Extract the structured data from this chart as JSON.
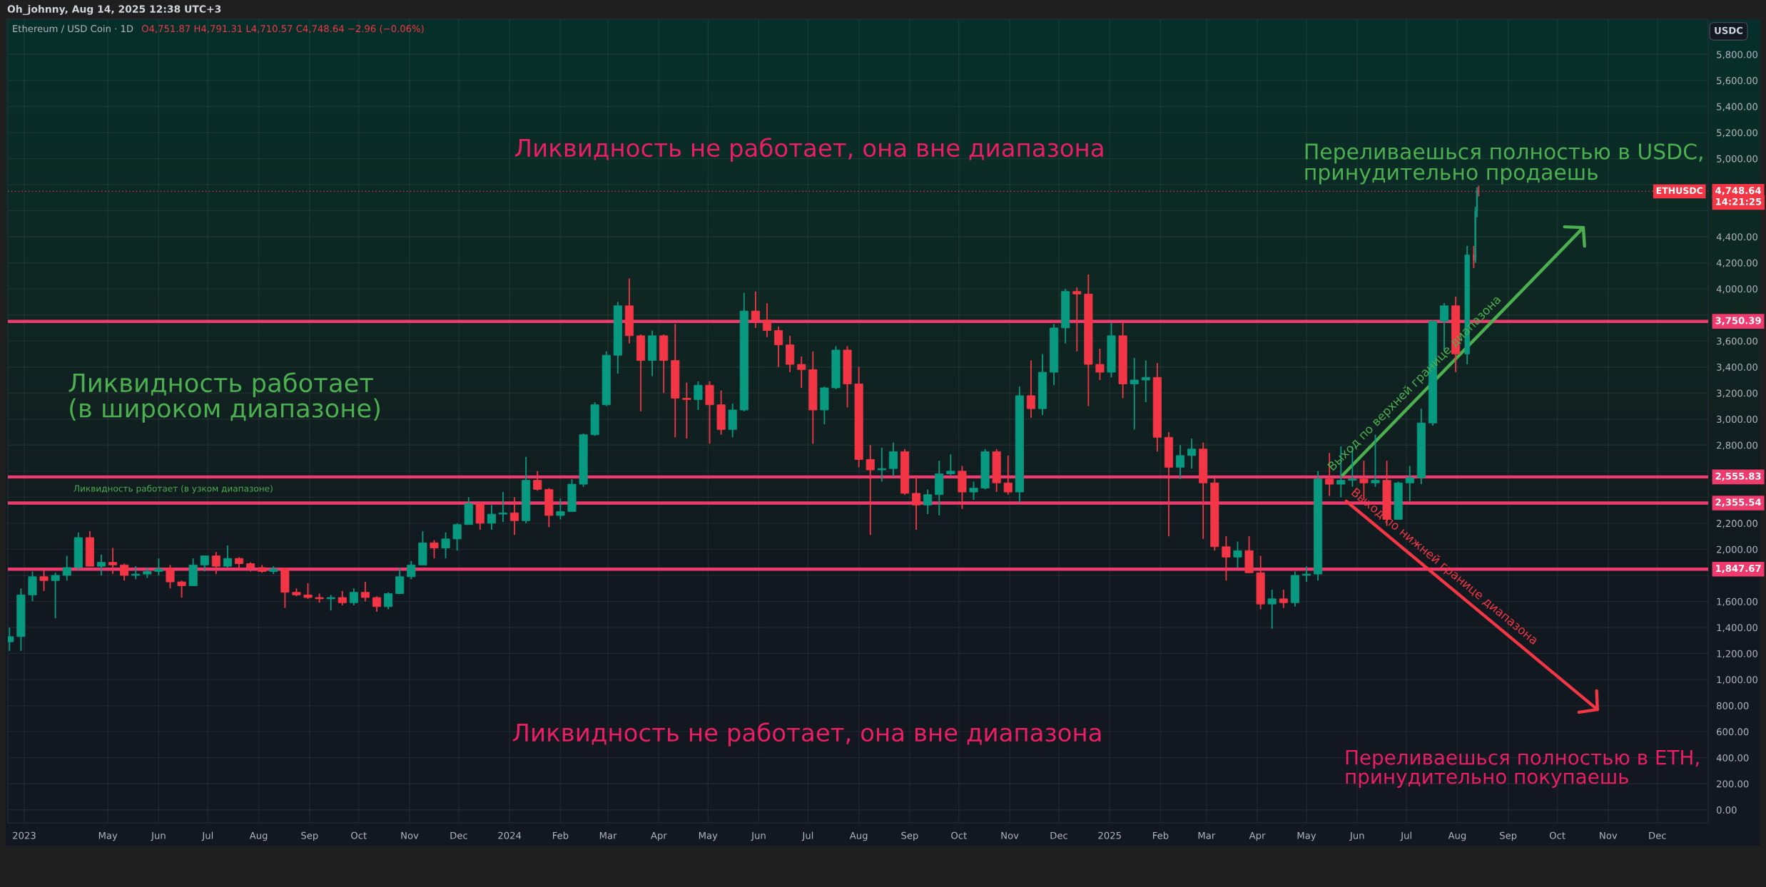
{
  "chart_data": {
    "type": "candlestick",
    "title": "Ethereum / USD Coin · 1D",
    "x": [
      "2023-03-02",
      "2023-03-09",
      "2023-03-16",
      "2023-03-23",
      "2023-03-30",
      "2023-04-06",
      "2023-04-13",
      "2023-04-20",
      "2023-04-27",
      "2023-05-04",
      "2023-05-11",
      "2023-05-18",
      "2023-05-25",
      "2023-06-01",
      "2023-06-08",
      "2023-06-15",
      "2023-06-22",
      "2023-06-29",
      "2023-07-06",
      "2023-07-13",
      "2023-07-20",
      "2023-07-27",
      "2023-08-03",
      "2023-08-10",
      "2023-08-17",
      "2023-08-24",
      "2023-08-31",
      "2023-09-07",
      "2023-09-14",
      "2023-09-21",
      "2023-09-28",
      "2023-10-05",
      "2023-10-12",
      "2023-10-19",
      "2023-10-26",
      "2023-11-02",
      "2023-11-09",
      "2023-11-16",
      "2023-11-23",
      "2023-11-30",
      "2023-12-07",
      "2023-12-14",
      "2023-12-21",
      "2023-12-28",
      "2024-01-04",
      "2024-01-11",
      "2024-01-18",
      "2024-01-25",
      "2024-02-01",
      "2024-02-08",
      "2024-02-15",
      "2024-02-22",
      "2024-02-29",
      "2024-03-07",
      "2024-03-14",
      "2024-03-21",
      "2024-03-28",
      "2024-04-04",
      "2024-04-11",
      "2024-04-18",
      "2024-04-25",
      "2024-05-02",
      "2024-05-09",
      "2024-05-16",
      "2024-05-23",
      "2024-05-30",
      "2024-06-06",
      "2024-06-13",
      "2024-06-20",
      "2024-06-27",
      "2024-07-04",
      "2024-07-11",
      "2024-07-18",
      "2024-07-25",
      "2024-08-01",
      "2024-08-08",
      "2024-08-15",
      "2024-08-22",
      "2024-08-29",
      "2024-09-05",
      "2024-09-12",
      "2024-09-19",
      "2024-09-26",
      "2024-10-03",
      "2024-10-10",
      "2024-10-17",
      "2024-10-24",
      "2024-10-31",
      "2024-11-07",
      "2024-11-14",
      "2024-11-21",
      "2024-11-28",
      "2024-12-05",
      "2024-12-12",
      "2024-12-19",
      "2024-12-26",
      "2025-01-02",
      "2025-01-09",
      "2025-01-16",
      "2025-01-23",
      "2025-01-30",
      "2025-02-06",
      "2025-02-13",
      "2025-02-20",
      "2025-02-27",
      "2025-03-06",
      "2025-03-13",
      "2025-03-20",
      "2025-03-27",
      "2025-04-03",
      "2025-04-10",
      "2025-04-17",
      "2025-04-24",
      "2025-05-01",
      "2025-05-08",
      "2025-05-15",
      "2025-05-22",
      "2025-05-29",
      "2025-06-05",
      "2025-06-12",
      "2025-06-19",
      "2025-06-26",
      "2025-07-03",
      "2025-07-10",
      "2025-07-17",
      "2025-07-24",
      "2025-07-31",
      "2025-08-07",
      "2025-08-11",
      "2025-08-12",
      "2025-08-13",
      "2025-08-14"
    ],
    "ohlc": [
      [
        1290,
        1400,
        1220,
        1330
      ],
      [
        1330,
        1700,
        1220,
        1650
      ],
      [
        1650,
        1830,
        1600,
        1790
      ],
      [
        1790,
        1840,
        1680,
        1760
      ],
      [
        1760,
        1820,
        1470,
        1800
      ],
      [
        1800,
        1950,
        1760,
        1860
      ],
      [
        1860,
        2130,
        1840,
        2090
      ],
      [
        2090,
        2140,
        1870,
        1870
      ],
      [
        1870,
        1960,
        1800,
        1900
      ],
      [
        1900,
        2010,
        1810,
        1880
      ],
      [
        1880,
        1890,
        1760,
        1800
      ],
      [
        1800,
        1870,
        1770,
        1810
      ],
      [
        1810,
        1860,
        1780,
        1830
      ],
      [
        1830,
        1930,
        1800,
        1850
      ],
      [
        1850,
        1880,
        1700,
        1750
      ],
      [
        1750,
        1760,
        1630,
        1720
      ],
      [
        1720,
        1930,
        1720,
        1880
      ],
      [
        1880,
        1950,
        1830,
        1950
      ],
      [
        1950,
        1980,
        1810,
        1870
      ],
      [
        1870,
        2030,
        1860,
        1930
      ],
      [
        1930,
        1940,
        1850,
        1890
      ],
      [
        1890,
        1900,
        1830,
        1860
      ],
      [
        1860,
        1880,
        1820,
        1830
      ],
      [
        1830,
        1870,
        1810,
        1850
      ],
      [
        1850,
        1860,
        1550,
        1670
      ],
      [
        1670,
        1700,
        1640,
        1650
      ],
      [
        1650,
        1740,
        1620,
        1630
      ],
      [
        1630,
        1660,
        1590,
        1620
      ],
      [
        1620,
        1650,
        1530,
        1630
      ],
      [
        1630,
        1680,
        1570,
        1590
      ],
      [
        1590,
        1700,
        1570,
        1670
      ],
      [
        1670,
        1750,
        1600,
        1630
      ],
      [
        1630,
        1640,
        1520,
        1560
      ],
      [
        1560,
        1670,
        1540,
        1660
      ],
      [
        1660,
        1860,
        1660,
        1790
      ],
      [
        1790,
        1910,
        1770,
        1880
      ],
      [
        1880,
        2140,
        1880,
        2050
      ],
      [
        2050,
        2070,
        1930,
        2010
      ],
      [
        2010,
        2130,
        1930,
        2080
      ],
      [
        2080,
        2200,
        1990,
        2190
      ],
      [
        2190,
        2400,
        2190,
        2350
      ],
      [
        2350,
        2360,
        2150,
        2200
      ],
      [
        2200,
        2340,
        2150,
        2270
      ],
      [
        2270,
        2440,
        2210,
        2280
      ],
      [
        2280,
        2400,
        2110,
        2220
      ],
      [
        2220,
        2710,
        2200,
        2530
      ],
      [
        2530,
        2600,
        2450,
        2460
      ],
      [
        2460,
        2470,
        2170,
        2260
      ],
      [
        2260,
        2390,
        2230,
        2290
      ],
      [
        2290,
        2540,
        2290,
        2500
      ],
      [
        2500,
        2890,
        2480,
        2880
      ],
      [
        2880,
        3130,
        2870,
        3110
      ],
      [
        3110,
        3520,
        3100,
        3490
      ],
      [
        3490,
        3900,
        3350,
        3870
      ],
      [
        3870,
        4080,
        3580,
        3640
      ],
      [
        3640,
        3650,
        3060,
        3450
      ],
      [
        3450,
        3680,
        3330,
        3640
      ],
      [
        3640,
        3650,
        3200,
        3450
      ],
      [
        3450,
        3730,
        2860,
        3160
      ],
      [
        3160,
        3280,
        2850,
        3150
      ],
      [
        3150,
        3290,
        3070,
        3260
      ],
      [
        3260,
        3290,
        2810,
        3110
      ],
      [
        3110,
        3220,
        2880,
        2920
      ],
      [
        2920,
        3120,
        2860,
        3070
      ],
      [
        3070,
        3970,
        3060,
        3830
      ],
      [
        3830,
        3980,
        3700,
        3760
      ],
      [
        3760,
        3890,
        3630,
        3680
      ],
      [
        3680,
        3710,
        3400,
        3570
      ],
      [
        3570,
        3640,
        3360,
        3420
      ],
      [
        3420,
        3480,
        3240,
        3380
      ],
      [
        3380,
        3520,
        2810,
        3070
      ],
      [
        3070,
        3250,
        2960,
        3240
      ],
      [
        3240,
        3560,
        3230,
        3530
      ],
      [
        3530,
        3560,
        3090,
        3270
      ],
      [
        3270,
        3400,
        2630,
        2690
      ],
      [
        2690,
        2800,
        2110,
        2610
      ],
      [
        2610,
        2780,
        2520,
        2620
      ],
      [
        2620,
        2820,
        2560,
        2750
      ],
      [
        2750,
        2770,
        2420,
        2430
      ],
      [
        2430,
        2560,
        2150,
        2340
      ],
      [
        2340,
        2460,
        2270,
        2420
      ],
      [
        2420,
        2680,
        2260,
        2580
      ],
      [
        2580,
        2730,
        2570,
        2600
      ],
      [
        2600,
        2640,
        2310,
        2440
      ],
      [
        2440,
        2520,
        2380,
        2470
      ],
      [
        2470,
        2770,
        2460,
        2750
      ],
      [
        2750,
        2770,
        2440,
        2510
      ],
      [
        2510,
        2720,
        2420,
        2440
      ],
      [
        2440,
        3250,
        2360,
        3180
      ],
      [
        3180,
        3450,
        3010,
        3080
      ],
      [
        3080,
        3500,
        3030,
        3360
      ],
      [
        3360,
        3730,
        3260,
        3700
      ],
      [
        3700,
        4000,
        3580,
        3980
      ],
      [
        3980,
        4010,
        3520,
        3960
      ],
      [
        3960,
        4110,
        3100,
        3420
      ],
      [
        3420,
        3540,
        3300,
        3360
      ],
      [
        3360,
        3740,
        3320,
        3640
      ],
      [
        3640,
        3750,
        3160,
        3270
      ],
      [
        3270,
        3470,
        2920,
        3300
      ],
      [
        3300,
        3450,
        3130,
        3320
      ],
      [
        3320,
        3430,
        2750,
        2860
      ],
      [
        2860,
        2900,
        2100,
        2630
      ],
      [
        2630,
        2800,
        2540,
        2720
      ],
      [
        2720,
        2850,
        2620,
        2770
      ],
      [
        2770,
        2820,
        2080,
        2510
      ],
      [
        2510,
        2550,
        1990,
        2020
      ],
      [
        2020,
        2100,
        1760,
        1940
      ],
      [
        1940,
        2060,
        1860,
        1990
      ],
      [
        1990,
        2100,
        1820,
        1820
      ],
      [
        1820,
        1950,
        1540,
        1580
      ],
      [
        1580,
        1690,
        1390,
        1620
      ],
      [
        1620,
        1690,
        1550,
        1590
      ],
      [
        1590,
        1830,
        1560,
        1800
      ],
      [
        1800,
        1870,
        1750,
        1810
      ],
      [
        1810,
        2600,
        1760,
        2540
      ],
      [
        2540,
        2740,
        2410,
        2500
      ],
      [
        2500,
        2790,
        2400,
        2530
      ],
      [
        2530,
        2790,
        2480,
        2540
      ],
      [
        2540,
        2680,
        2380,
        2510
      ],
      [
        2510,
        2880,
        2480,
        2530
      ],
      [
        2530,
        2680,
        2180,
        2230
      ],
      [
        2230,
        2520,
        2230,
        2510
      ],
      [
        2510,
        2640,
        2370,
        2550
      ],
      [
        2550,
        3080,
        2500,
        2970
      ],
      [
        2970,
        3760,
        2950,
        3750
      ],
      [
        3750,
        3890,
        3520,
        3870
      ],
      [
        3870,
        3940,
        3360,
        3500
      ],
      [
        3500,
        4330,
        3420,
        4260
      ],
      [
        4260,
        4330,
        4160,
        4220
      ],
      [
        4220,
        4630,
        4200,
        4600
      ],
      [
        4600,
        4780,
        4550,
        4750
      ],
      [
        4751.87,
        4791.31,
        4710.57,
        4748.64
      ]
    ],
    "colors": [
      "#089981",
      "#089981",
      "#089981",
      "#f23645",
      "#089981",
      "#089981",
      "#089981",
      "#f23645",
      "#089981",
      "#f23645",
      "#f23645",
      "#089981",
      "#089981",
      "#089981",
      "#f23645",
      "#f23645",
      "#089981",
      "#089981",
      "#f23645",
      "#089981",
      "#f23645",
      "#f23645",
      "#f23645",
      "#089981",
      "#f23645",
      "#f23645",
      "#f23645",
      "#f23645",
      "#089981",
      "#f23645",
      "#089981",
      "#f23645",
      "#f23645",
      "#089981",
      "#089981",
      "#089981",
      "#089981",
      "#f23645",
      "#089981",
      "#089981",
      "#089981",
      "#f23645",
      "#089981",
      "#089981",
      "#f23645",
      "#089981",
      "#f23645",
      "#f23645",
      "#089981",
      "#089981",
      "#089981",
      "#089981",
      "#089981",
      "#089981",
      "#f23645",
      "#f23645",
      "#089981",
      "#f23645",
      "#f23645",
      "#f23645",
      "#089981",
      "#f23645",
      "#f23645",
      "#089981",
      "#089981",
      "#f23645",
      "#f23645",
      "#f23645",
      "#f23645",
      "#f23645",
      "#f23645",
      "#089981",
      "#089981",
      "#f23645",
      "#f23645",
      "#f23645",
      "#089981",
      "#089981",
      "#f23645",
      "#f23645",
      "#089981",
      "#089981",
      "#089981",
      "#f23645",
      "#089981",
      "#089981",
      "#f23645",
      "#f23645",
      "#089981",
      "#f23645",
      "#089981",
      "#089981",
      "#089981",
      "#f23645",
      "#f23645",
      "#f23645",
      "#089981",
      "#f23645",
      "#089981",
      "#089981",
      "#f23645",
      "#f23645",
      "#089981",
      "#089981",
      "#f23645",
      "#f23645",
      "#f23645",
      "#089981",
      "#f23645",
      "#f23645",
      "#089981",
      "#f23645",
      "#089981",
      "#089981",
      "#089981",
      "#f23645",
      "#089981",
      "#089981",
      "#f23645",
      "#089981",
      "#f23645",
      "#089981",
      "#089981",
      "#089981",
      "#089981",
      "#089981",
      "#f23645",
      "#089981",
      "#f23645",
      "#089981",
      "#089981",
      "#f23645"
    ],
    "xlim": [
      "2023-03-01",
      "2026-01-01"
    ],
    "xticks": [
      {
        "value": "2023-03-11",
        "label": "2023"
      },
      {
        "value": "2023-05-01",
        "label": "May"
      },
      {
        "value": "2023-06-01",
        "label": "Jun"
      },
      {
        "value": "2023-07-01",
        "label": "Jul"
      },
      {
        "value": "2023-08-01",
        "label": "Aug"
      },
      {
        "value": "2023-09-01",
        "label": "Sep"
      },
      {
        "value": "2023-10-01",
        "label": "Oct"
      },
      {
        "value": "2023-11-01",
        "label": "Nov"
      },
      {
        "value": "2023-12-01",
        "label": "Dec"
      },
      {
        "value": "2024-01-01",
        "label": "2024"
      },
      {
        "value": "2024-02-01",
        "label": "Feb"
      },
      {
        "value": "2024-03-01",
        "label": "Mar"
      },
      {
        "value": "2024-04-01",
        "label": "Apr"
      },
      {
        "value": "2024-05-01",
        "label": "May"
      },
      {
        "value": "2024-06-01",
        "label": "Jun"
      },
      {
        "value": "2024-07-01",
        "label": "Jul"
      },
      {
        "value": "2024-08-01",
        "label": "Aug"
      },
      {
        "value": "2024-09-01",
        "label": "Sep"
      },
      {
        "value": "2024-10-01",
        "label": "Oct"
      },
      {
        "value": "2024-11-01",
        "label": "Nov"
      },
      {
        "value": "2024-12-01",
        "label": "Dec"
      },
      {
        "value": "2025-01-01",
        "label": "2025"
      },
      {
        "value": "2025-02-01",
        "label": "Feb"
      },
      {
        "value": "2025-03-01",
        "label": "Mar"
      },
      {
        "value": "2025-04-01",
        "label": "Apr"
      },
      {
        "value": "2025-05-01",
        "label": "May"
      },
      {
        "value": "2025-06-01",
        "label": "Jun"
      },
      {
        "value": "2025-07-01",
        "label": "Jul"
      },
      {
        "value": "2025-08-01",
        "label": "Aug"
      },
      {
        "value": "2025-09-01",
        "label": "Sep"
      },
      {
        "value": "2025-10-01",
        "label": "Oct"
      },
      {
        "value": "2025-11-01",
        "label": "Nov"
      },
      {
        "value": "2025-12-01",
        "label": "Dec"
      }
    ],
    "ylim": [
      -100,
      6070
    ],
    "yticks": [
      {
        "value": 0,
        "label": "0.00"
      },
      {
        "value": 200,
        "label": "200.00"
      },
      {
        "value": 400,
        "label": "400.00"
      },
      {
        "value": 600,
        "label": "600.00"
      },
      {
        "value": 800,
        "label": "800.00"
      },
      {
        "value": 1000,
        "label": "1,000.00"
      },
      {
        "value": 1200,
        "label": "1,200.00"
      },
      {
        "value": 1400,
        "label": "1,400.00"
      },
      {
        "value": 1600,
        "label": "1,600.00"
      },
      {
        "value": 1800,
        "label": null
      },
      {
        "value": 2000,
        "label": "2,000.00"
      },
      {
        "value": 2200,
        "label": "2,200.00"
      },
      {
        "value": 2400,
        "label": null
      },
      {
        "value": 2600,
        "label": null
      },
      {
        "value": 2800,
        "label": "2,800.00"
      },
      {
        "value": 3000,
        "label": "3,000.00"
      },
      {
        "value": 3200,
        "label": "3,200.00"
      },
      {
        "value": 3400,
        "label": "3,400.00"
      },
      {
        "value": 3600,
        "label": "3,600.00"
      },
      {
        "value": 3800,
        "label": null
      },
      {
        "value": 4000,
        "label": "4,000.00"
      },
      {
        "value": 4200,
        "label": "4,200.00"
      },
      {
        "value": 4400,
        "label": "4,400.00"
      },
      {
        "value": 4600,
        "label": null
      },
      {
        "value": 4800,
        "label": null
      },
      {
        "value": 5000,
        "label": "5,000.00"
      },
      {
        "value": 5200,
        "label": "5,200.00"
      },
      {
        "value": 5400,
        "label": "5,400.00"
      },
      {
        "value": 5600,
        "label": "5,600.00"
      },
      {
        "value": 5800,
        "label": "5,800.00"
      }
    ],
    "ref_lines": [
      {
        "axis": "y",
        "value": 3750.39,
        "label": "3,750.39",
        "color": "#ef3a6d"
      },
      {
        "axis": "y",
        "value": 2555.83,
        "label": "2,555.83",
        "color": "#ef3a6d"
      },
      {
        "axis": "y",
        "value": 2355.54,
        "label": "2,355.54",
        "color": "#ef3a6d"
      },
      {
        "axis": "y",
        "value": 1847.67,
        "label": "1,847.67",
        "color": "#ef3a6d"
      },
      {
        "axis": "y",
        "value": 4748.64,
        "label": "4,748.64",
        "color": "#f23645",
        "line_style": "dotted"
      }
    ],
    "annotations": [
      "Oh_johnny, Aug 14, 2025 12:38 UTC+3",
      "O4,751.87 H4,791.31 L4,710.57 C4,748.64 −2.96 (−0.06%)",
      "Ликвидность не работает, она вне диапазона",
      "Ликвидность не работает, она вне диапазона",
      "Ликвидность работает\n(в широком диапазоне)",
      "Ликвидность работает (в узком диапазоне)",
      "Переливаешься полностью в USDC,\nпринудительно продаешь",
      "Переливаешься полностью в ETH,\nпринудительно покупаешь",
      "Выход по верхней границе диапазона",
      "Выход по нижней границе диапазона",
      "USDC",
      "ETHUSDC",
      "14:21:25"
    ],
    "grid": true
  }
}
